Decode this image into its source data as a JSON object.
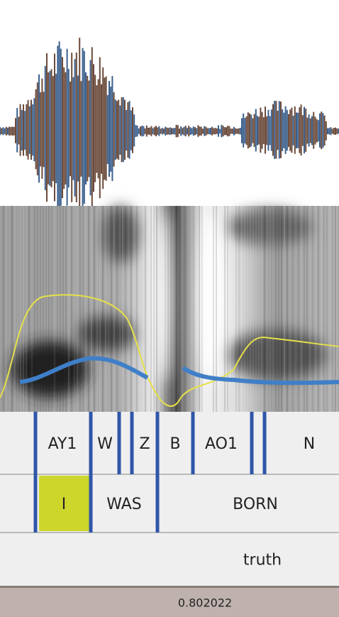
{
  "tiers": [
    {
      "labels": [
        "AY1",
        "W",
        "Z",
        "B",
        "AO1",
        "N"
      ]
    },
    {
      "labels": [
        "I",
        "WAS",
        "BORN"
      ]
    },
    {
      "labels": [
        "truth"
      ]
    }
  ],
  "status": "0.802022"
}
